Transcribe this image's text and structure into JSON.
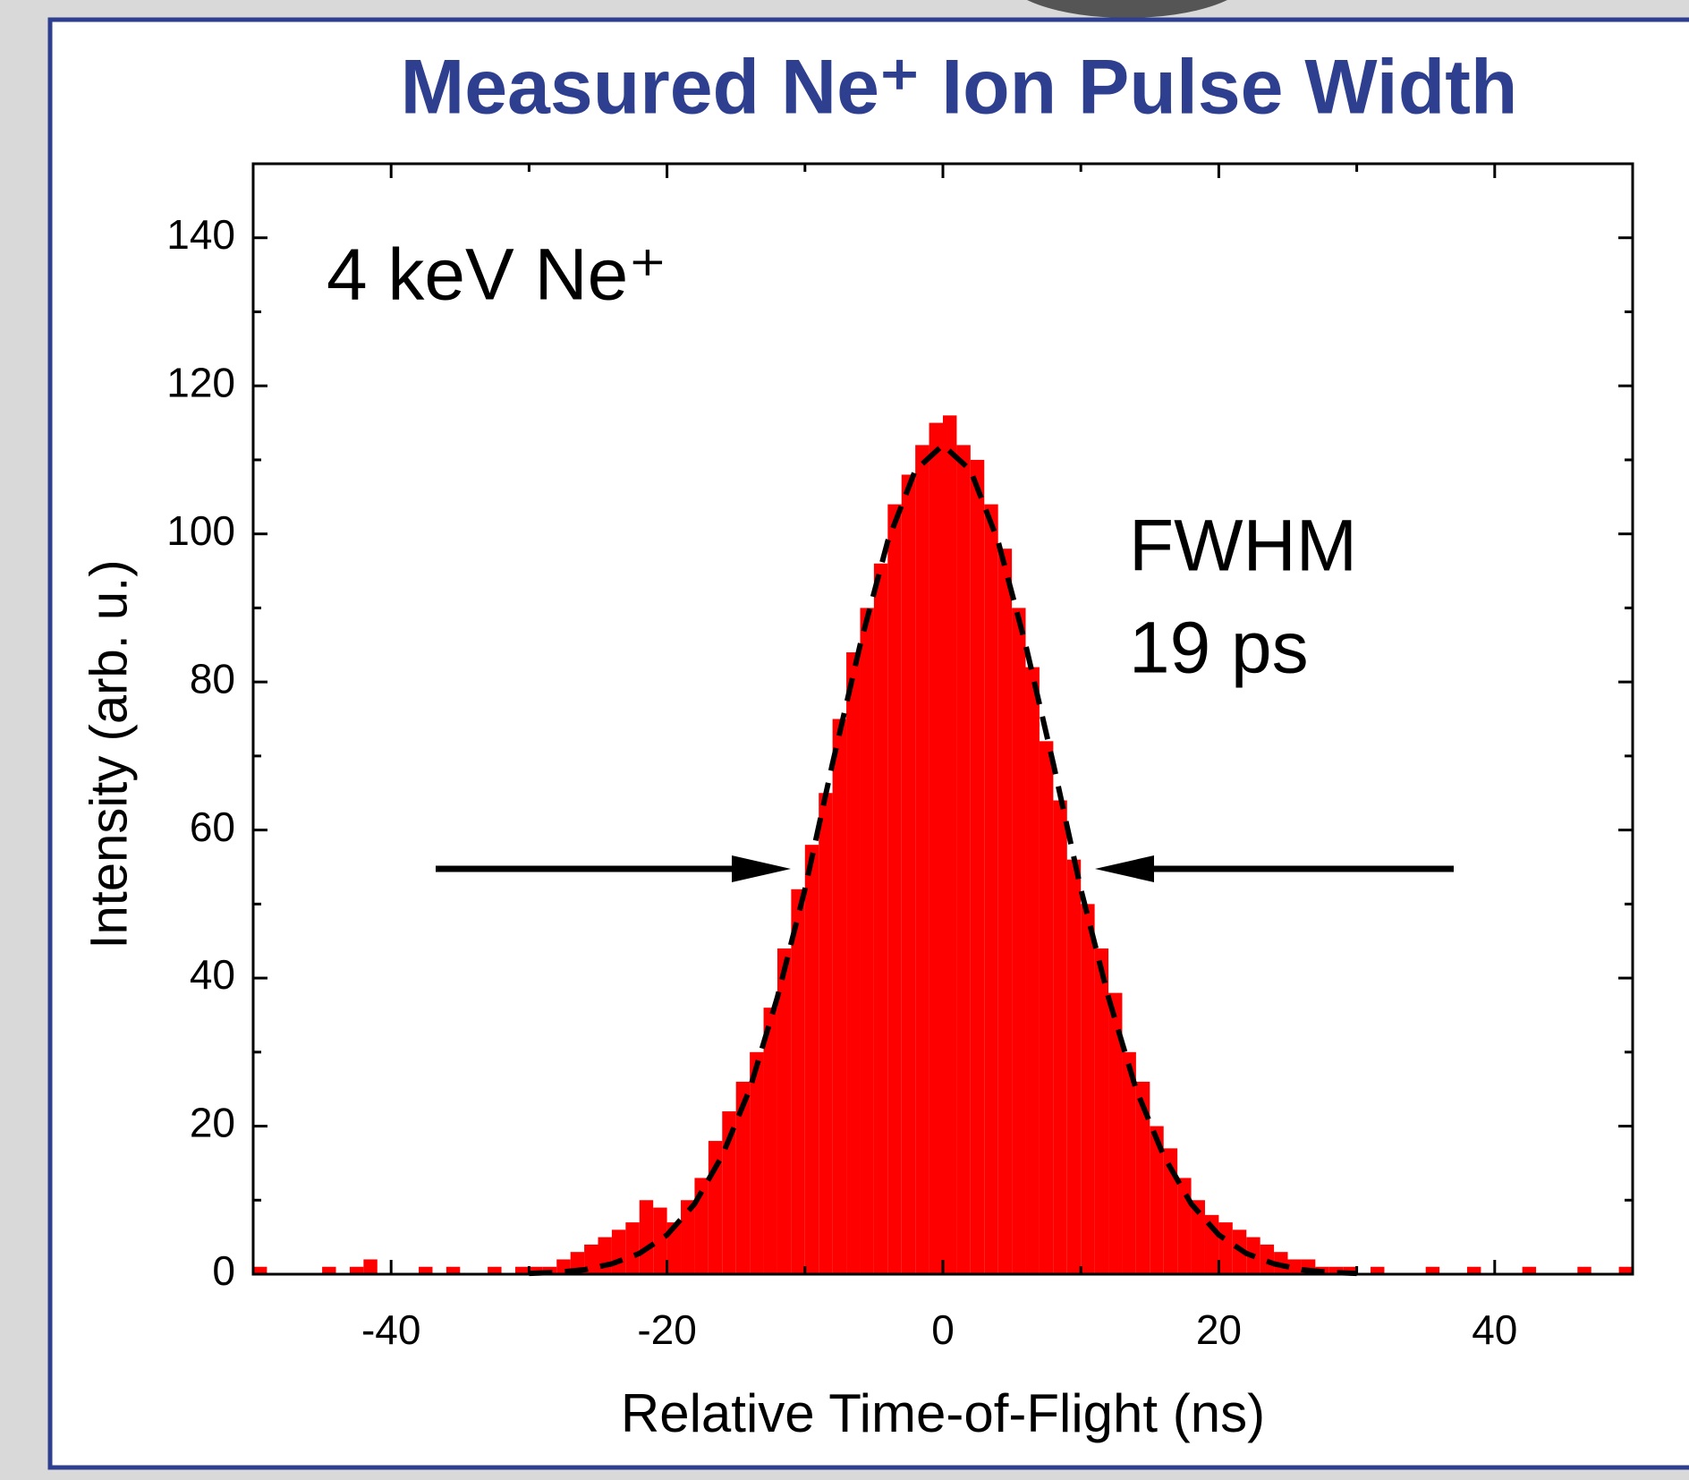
{
  "chart_data": {
    "type": "histogram",
    "title": "Measured Ne⁺ Ion Pulse Width",
    "x_label": "Relative Time-of-Flight (ns)",
    "y_label": "Intensity (arb. u.)",
    "annotations": [
      "4 keV Ne⁺",
      "FWHM",
      "19 ps"
    ],
    "bins": [
      -50,
      -49,
      -48,
      -47,
      -46,
      -45,
      -44,
      -43,
      -42,
      -41,
      -40,
      -39,
      -38,
      -37,
      -36,
      -35,
      -34,
      -33,
      -32,
      -31,
      -30,
      -29,
      -28,
      -27,
      -26,
      -25,
      -24,
      -23,
      -22,
      -21,
      -20,
      -19,
      -18,
      -17,
      -16,
      -15,
      -14,
      -13,
      -12,
      -11,
      -10,
      -9,
      -8,
      -7,
      -6,
      -5,
      -4,
      -3,
      -2,
      -1,
      0,
      1,
      2,
      3,
      4,
      5,
      6,
      7,
      8,
      9,
      10,
      11,
      12,
      13,
      14,
      15,
      16,
      17,
      18,
      19,
      20,
      21,
      22,
      23,
      24,
      25,
      26,
      27,
      28,
      29,
      30,
      31,
      32,
      33,
      34,
      35,
      36,
      37,
      38,
      39,
      40,
      41,
      42,
      43,
      44,
      45,
      46,
      47,
      48,
      49,
      50
    ],
    "values": [
      1,
      0,
      0,
      0,
      0,
      1,
      0,
      1,
      2,
      0,
      0,
      0,
      1,
      0,
      1,
      0,
      0,
      1,
      0,
      1,
      1,
      1,
      2,
      3,
      4,
      5,
      6,
      7,
      10,
      9,
      7,
      10,
      13,
      18,
      22,
      26,
      30,
      36,
      44,
      52,
      58,
      65,
      75,
      84,
      90,
      96,
      104,
      108,
      112,
      115,
      116,
      112,
      110,
      104,
      98,
      90,
      82,
      72,
      64,
      56,
      50,
      44,
      38,
      30,
      26,
      20,
      17,
      13,
      10,
      8,
      7,
      6,
      5,
      4,
      3,
      2,
      2,
      1,
      1,
      1,
      0,
      1,
      0,
      0,
      0,
      1,
      0,
      0,
      1,
      0,
      0,
      0,
      1,
      0,
      0,
      0,
      1,
      0,
      0,
      1
    ],
    "color": "#ff0000",
    "fit": {
      "type": "line",
      "color": "#000000",
      "x": [
        -30,
        -28,
        -26,
        -24,
        -22,
        -20,
        -18,
        -16,
        -14,
        -12,
        -10,
        -8,
        -6,
        -4,
        -2,
        0,
        2,
        4,
        6,
        8,
        10,
        12,
        14,
        16,
        18,
        20,
        22,
        24,
        26,
        28,
        30
      ],
      "values": [
        0.1,
        0.25,
        0.6,
        1.4,
        2.8,
        5.3,
        9.5,
        16,
        25,
        37.4,
        52,
        69,
        85,
        99,
        108.6,
        112,
        108.6,
        99,
        85,
        69,
        52,
        37.4,
        25,
        16,
        9.5,
        5.3,
        2.8,
        1.4,
        0.6,
        0.25,
        0.1
      ]
    },
    "xlim": [
      -50,
      50
    ],
    "xticks": [
      -40,
      -20,
      0,
      20,
      40
    ],
    "xminorticks": [
      -30,
      -10,
      10,
      30
    ],
    "ylim": [
      0,
      150
    ],
    "yticks": [
      0,
      20,
      40,
      60,
      80,
      100,
      120,
      140
    ],
    "yminorticks": [
      10,
      30,
      50,
      70,
      90,
      110,
      130
    ]
  }
}
